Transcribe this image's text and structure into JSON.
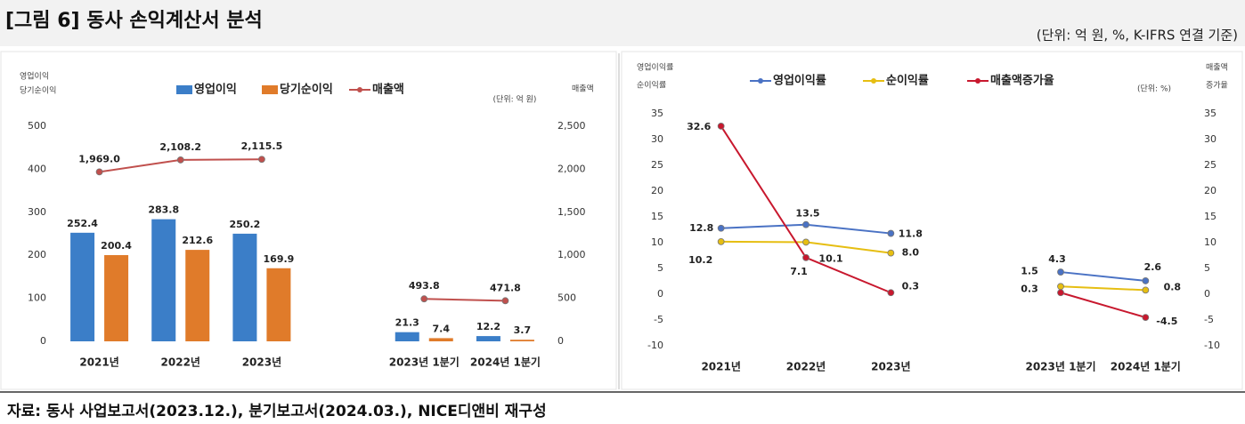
{
  "header": {
    "title": "[그림 6] 동사 손익계산서 분석",
    "unit": "(단위: 억 원, %, K-IFRS 연결 기준)"
  },
  "source": "자료: 동사 사업보고서(2023.12.), 분기보고서(2024.03.), NICE디앤비 재구성",
  "chart_data": [
    {
      "type": "bar",
      "y_label": [
        "영업이익",
        "당기순이익"
      ],
      "y2_label": [
        "매출액"
      ],
      "unit_note": "(단위: 억 원)",
      "categories": [
        "2021년",
        "2022년",
        "2023년",
        null,
        "2023년 1분기",
        "2024년 1분기"
      ],
      "series": [
        {
          "name": "영업이익",
          "type": "bar",
          "color": "#3b7ec8",
          "values": [
            252.4,
            283.8,
            250.2,
            null,
            21.3,
            12.2
          ]
        },
        {
          "name": "당기순이익",
          "type": "bar",
          "color": "#e07b2a",
          "values": [
            200.4,
            212.6,
            169.9,
            null,
            7.4,
            3.7
          ]
        },
        {
          "name": "매출액",
          "type": "line",
          "axis": "y2",
          "color": "#c0504d",
          "values": [
            1969.0,
            2108.2,
            2115.5,
            null,
            493.8,
            471.8
          ],
          "value_labels": [
            "1,969.0",
            "2,108.2",
            "2,115.5",
            null,
            "493.8",
            "471.8"
          ]
        }
      ],
      "ylim": [
        0,
        500
      ],
      "yticks": [
        0,
        100,
        200,
        300,
        400,
        500
      ],
      "y2lim": [
        0,
        2500
      ],
      "y2ticks": [
        0,
        500,
        {
          "value": 1000,
          "label": "1,000"
        },
        {
          "value": 1500,
          "label": "1,500"
        },
        {
          "value": 2000,
          "label": "2,000"
        },
        {
          "value": 2500,
          "label": "2,500"
        }
      ],
      "grid": false
    },
    {
      "type": "line",
      "y_label": [
        "영업이익률",
        "순이익률"
      ],
      "y2_label": [
        "매출액",
        "증가율"
      ],
      "unit_note": "(단위: %)",
      "categories": [
        "2021년",
        "2022년",
        "2023년",
        null,
        "2023년 1분기",
        "2024년 1분기"
      ],
      "series": [
        {
          "name": "영업이익률",
          "color": "#4a72c4",
          "values": [
            12.8,
            13.5,
            11.8,
            null,
            4.3,
            2.6
          ]
        },
        {
          "name": "순이익률",
          "color": "#e6be12",
          "values": [
            10.2,
            10.1,
            8.0,
            null,
            1.5,
            0.8
          ],
          "value_labels": [
            "10.2",
            "10.1",
            "8.0",
            null,
            "1.5",
            "0.8"
          ]
        },
        {
          "name": "매출액증가율",
          "axis": "y2",
          "color": "#c8182e",
          "values": [
            32.6,
            7.1,
            0.3,
            null,
            0.3,
            -4.5
          ]
        }
      ],
      "ylim": [
        -10,
        35
      ],
      "yticks": [
        -10,
        -5,
        0,
        5,
        10,
        15,
        20,
        25,
        30,
        35
      ],
      "y2lim": [
        -10,
        35
      ],
      "y2ticks": [
        -10,
        -5,
        0,
        5,
        10,
        15,
        20,
        25,
        30,
        35
      ],
      "grid": false
    }
  ]
}
